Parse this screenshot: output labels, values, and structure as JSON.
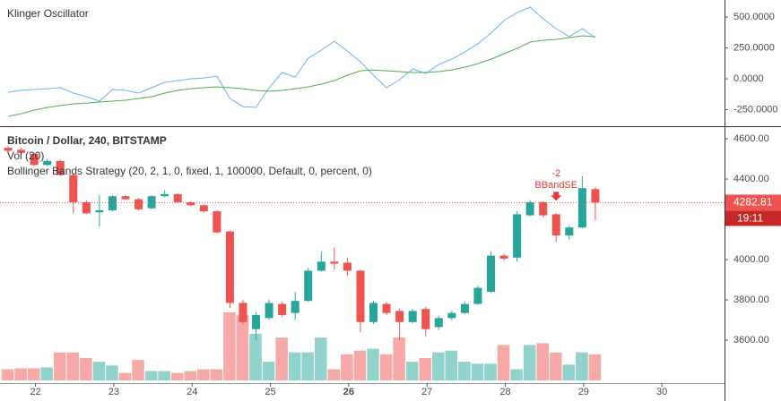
{
  "chart_data": [
    {
      "type": "line",
      "title": "Klinger Oscillator",
      "xlim": [
        -0.62,
        54.9
      ],
      "ylim": [
        -384,
        638
      ],
      "yticks": [
        {
          "value": 500,
          "label": "500.0000"
        },
        {
          "value": 250,
          "label": "250.0000"
        },
        {
          "value": 0,
          "label": "0.0000"
        },
        {
          "value": -250,
          "label": "-250.0000"
        }
      ],
      "series": [
        {
          "color": "#64b5f6",
          "values": [
            -109,
            -94,
            -87,
            -80,
            -72,
            -116,
            -145,
            -181,
            -87,
            -94,
            -116,
            -72,
            -29,
            -14,
            0,
            7,
            22,
            -159,
            -225,
            -232,
            -72,
            51,
            14,
            167,
            232,
            304,
            225,
            138,
            29,
            -72,
            -7,
            80,
            43,
            116,
            159,
            217,
            283,
            370,
            471,
            536,
            580,
            486,
            406,
            341,
            406,
            333
          ]
        },
        {
          "color": "#4caf50",
          "values": [
            -304,
            -283,
            -254,
            -232,
            -217,
            -203,
            -196,
            -188,
            -181,
            -174,
            -159,
            -145,
            -116,
            -94,
            -80,
            -72,
            -65,
            -72,
            -80,
            -94,
            -101,
            -94,
            -80,
            -65,
            -43,
            -14,
            29,
            65,
            72,
            65,
            58,
            51,
            51,
            58,
            72,
            94,
            123,
            159,
            203,
            246,
            297,
            312,
            319,
            333,
            348,
            341
          ]
        }
      ]
    },
    {
      "type": "candlestick",
      "title": "Bitcoin / Dollar, 240, BITSTAMP",
      "studies": [
        "Vol (20)",
        "Bollinger Bands Strategy (20, 2, 1, 0, fixed, 1, 100000, Default, 0, percent, 0)"
      ],
      "xlim": [
        -0.62,
        54.9
      ],
      "ylim": [
        3387,
        4658
      ],
      "yticks": [
        {
          "value": 3600,
          "label": "3600.00"
        },
        {
          "value": 3800,
          "label": "3800.00"
        },
        {
          "value": 4000,
          "label": "4000.00"
        },
        {
          "value": 4200,
          "label": "4200.00"
        },
        {
          "value": 4400,
          "label": "4400.00"
        },
        {
          "value": 4600,
          "label": "4600.00"
        }
      ],
      "xticks": [
        {
          "value": 2.1,
          "label": "22"
        },
        {
          "value": 8.1,
          "label": "23"
        },
        {
          "value": 14.1,
          "label": "24"
        },
        {
          "value": 20.1,
          "label": "25"
        },
        {
          "value": 26.1,
          "label": "26"
        },
        {
          "value": 32.1,
          "label": "27"
        },
        {
          "value": 38.1,
          "label": "28"
        },
        {
          "value": 44.1,
          "label": "29"
        },
        {
          "value": 50.1,
          "label": "30"
        }
      ],
      "up_color": "#26a69a",
      "down_color": "#ef5350",
      "open": [
        4555,
        4545,
        4525,
        4470,
        4490,
        4420,
        4285,
        4235,
        4245,
        4315,
        4300,
        4255,
        4315,
        4325,
        4285,
        4270,
        4240,
        4140,
        3785,
        3655,
        3710,
        3780,
        3735,
        3795,
        3945,
        3990,
        3985,
        3945,
        3690,
        3780,
        3745,
        3690,
        3755,
        3665,
        3710,
        3735,
        3780,
        3840,
        4020,
        4010,
        4220,
        4285,
        4225,
        4120,
        4160,
        4350
      ],
      "high": [
        4565,
        4555,
        4530,
        4500,
        4495,
        4425,
        4295,
        4320,
        4320,
        4320,
        4305,
        4320,
        4345,
        4330,
        4290,
        4275,
        4245,
        4145,
        3800,
        3740,
        3800,
        3790,
        3840,
        3960,
        4040,
        4060,
        4010,
        3950,
        3795,
        3790,
        3755,
        3755,
        3765,
        3720,
        3745,
        3790,
        3870,
        4040,
        4030,
        4240,
        4295,
        4290,
        4230,
        4170,
        4415,
        4360
      ],
      "low": [
        4535,
        4525,
        4465,
        4465,
        4415,
        4230,
        4225,
        4165,
        4240,
        4295,
        4245,
        4250,
        4310,
        4280,
        4265,
        4235,
        4130,
        3760,
        3680,
        3600,
        3700,
        3715,
        3700,
        3790,
        3940,
        3950,
        3920,
        3640,
        3680,
        3725,
        3600,
        3685,
        3620,
        3650,
        3700,
        3730,
        3775,
        3835,
        3995,
        3990,
        4215,
        4210,
        4090,
        4100,
        4155,
        4195
      ],
      "close": [
        4540,
        4530,
        4470,
        4490,
        4420,
        4285,
        4230,
        4245,
        4315,
        4300,
        4250,
        4315,
        4325,
        4285,
        4270,
        4240,
        4135,
        3785,
        3690,
        3725,
        3785,
        3725,
        3795,
        3945,
        3990,
        3980,
        3945,
        3690,
        3785,
        3735,
        3690,
        3745,
        3655,
        3710,
        3735,
        3780,
        3860,
        4020,
        4005,
        4225,
        4285,
        4220,
        4120,
        4160,
        4355,
        4283
      ],
      "volume": [
        12,
        13,
        13,
        14,
        30,
        30,
        24,
        20,
        16,
        8,
        22,
        10,
        10,
        8,
        10,
        12,
        12,
        73,
        70,
        50,
        20,
        46,
        30,
        30,
        46,
        12,
        28,
        32,
        34,
        28,
        46,
        20,
        24,
        30,
        32,
        20,
        18,
        18,
        38,
        12,
        38,
        40,
        30,
        17,
        30,
        28
      ],
      "annotations": [
        {
          "index": 42,
          "qty": -2,
          "label": "BBandSE"
        }
      ],
      "last_price": {
        "value": 4282.81,
        "countdown": "19:11"
      }
    }
  ]
}
